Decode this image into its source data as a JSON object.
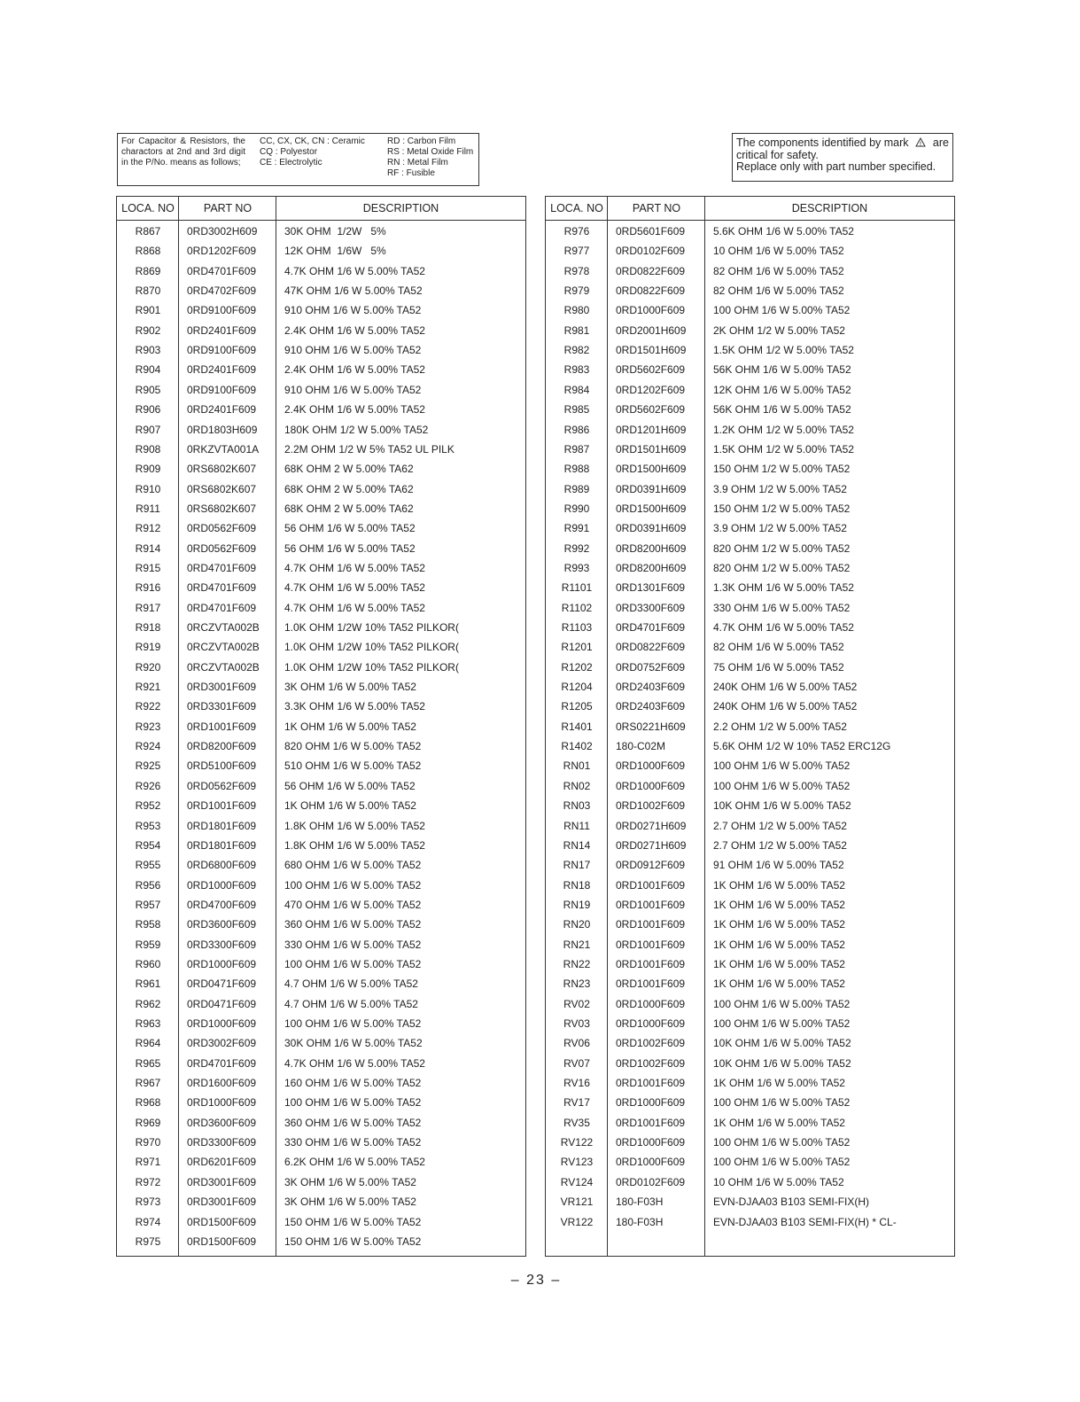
{
  "legend": {
    "intro": "For Capacitor & Resistors, the charactors at 2nd and 3rd digit in the P/No. means as follows;",
    "col2": [
      "CC, CX, CK, CN : Ceramic",
      "CQ : Polyestor",
      "CE : Electrolytic"
    ],
    "col3": [
      "RD : Carbon Film",
      "RS : Metal Oxide Film",
      "RN : Metal Film",
      "RF : Fusible"
    ]
  },
  "safety": {
    "before": "The components identified by mark",
    "after": "are",
    "line2": "critical for safety.",
    "line3": "Replace only with part number specified."
  },
  "left_table": {
    "headers": [
      "LOCA. NO",
      "PART NO",
      "DESCRIPTION"
    ],
    "rows": [
      [
        "R867",
        "0RD3002H609",
        "30K OHM  1/2W   5%"
      ],
      [
        "R868",
        "0RD1202F609",
        "12K OHM  1/6W   5%"
      ],
      [
        "R869",
        "0RD4701F609",
        "4.7K OHM 1/6 W 5.00% TA52"
      ],
      [
        "R870",
        "0RD4702F609",
        "47K OHM 1/6 W 5.00% TA52"
      ],
      [
        "R901",
        "0RD9100F609",
        "910 OHM 1/6 W 5.00% TA52"
      ],
      [
        "R902",
        "0RD2401F609",
        "2.4K OHM 1/6 W 5.00% TA52"
      ],
      [
        "R903",
        "0RD9100F609",
        "910 OHM 1/6 W 5.00% TA52"
      ],
      [
        "R904",
        "0RD2401F609",
        "2.4K OHM 1/6 W 5.00% TA52"
      ],
      [
        "R905",
        "0RD9100F609",
        "910 OHM 1/6 W 5.00% TA52"
      ],
      [
        "R906",
        "0RD2401F609",
        "2.4K OHM 1/6 W 5.00% TA52"
      ],
      [
        "R907",
        "0RD1803H609",
        "180K OHM 1/2 W 5.00% TA52"
      ],
      [
        "R908",
        "0RKZVTA001A",
        "2.2M OHM 1/2 W 5% TA52 UL PILK"
      ],
      [
        "R909",
        "0RS6802K607",
        "68K OHM 2 W 5.00% TA62"
      ],
      [
        "R910",
        "0RS6802K607",
        "68K OHM 2 W 5.00% TA62"
      ],
      [
        "R911",
        "0RS6802K607",
        "68K OHM 2 W 5.00% TA62"
      ],
      [
        "R912",
        "0RD0562F609",
        "56 OHM 1/6 W 5.00% TA52"
      ],
      [
        "R914",
        "0RD0562F609",
        "56 OHM 1/6 W 5.00% TA52"
      ],
      [
        "R915",
        "0RD4701F609",
        "4.7K OHM 1/6 W 5.00% TA52"
      ],
      [
        "R916",
        "0RD4701F609",
        "4.7K OHM 1/6 W 5.00% TA52"
      ],
      [
        "R917",
        "0RD4701F609",
        "4.7K OHM 1/6 W 5.00% TA52"
      ],
      [
        "R918",
        "0RCZVTA002B",
        "1.0K OHM 1/2W 10% TA52 PILKOR("
      ],
      [
        "R919",
        "0RCZVTA002B",
        "1.0K OHM 1/2W 10% TA52 PILKOR("
      ],
      [
        "R920",
        "0RCZVTA002B",
        "1.0K OHM 1/2W 10% TA52 PILKOR("
      ],
      [
        "R921",
        "0RD3001F609",
        "3K OHM 1/6 W 5.00% TA52"
      ],
      [
        "R922",
        "0RD3301F609",
        "3.3K OHM 1/6 W 5.00% TA52"
      ],
      [
        "R923",
        "0RD1001F609",
        "1K OHM 1/6 W 5.00% TA52"
      ],
      [
        "R924",
        "0RD8200F609",
        "820 OHM 1/6 W 5.00% TA52"
      ],
      [
        "R925",
        "0RD5100F609",
        "510 OHM 1/6 W 5.00% TA52"
      ],
      [
        "R926",
        "0RD0562F609",
        "56 OHM 1/6 W 5.00% TA52"
      ],
      [
        "R952",
        "0RD1001F609",
        "1K OHM 1/6 W 5.00% TA52"
      ],
      [
        "R953",
        "0RD1801F609",
        "1.8K OHM 1/6 W 5.00% TA52"
      ],
      [
        "R954",
        "0RD1801F609",
        "1.8K OHM 1/6 W 5.00% TA52"
      ],
      [
        "R955",
        "0RD6800F609",
        "680 OHM 1/6 W 5.00% TA52"
      ],
      [
        "R956",
        "0RD1000F609",
        "100 OHM 1/6 W 5.00% TA52"
      ],
      [
        "R957",
        "0RD4700F609",
        "470 OHM 1/6 W 5.00% TA52"
      ],
      [
        "R958",
        "0RD3600F609",
        "360 OHM 1/6 W 5.00% TA52"
      ],
      [
        "R959",
        "0RD3300F609",
        "330 OHM 1/6 W 5.00% TA52"
      ],
      [
        "R960",
        "0RD1000F609",
        "100 OHM 1/6 W 5.00% TA52"
      ],
      [
        "R961",
        "0RD0471F609",
        "4.7 OHM 1/6 W 5.00% TA52"
      ],
      [
        "R962",
        "0RD0471F609",
        "4.7 OHM 1/6 W 5.00% TA52"
      ],
      [
        "R963",
        "0RD1000F609",
        "100 OHM 1/6 W 5.00% TA52"
      ],
      [
        "R964",
        "0RD3002F609",
        "30K OHM 1/6 W 5.00% TA52"
      ],
      [
        "R965",
        "0RD4701F609",
        "4.7K OHM 1/6 W 5.00% TA52"
      ],
      [
        "R967",
        "0RD1600F609",
        "160 OHM 1/6 W 5.00% TA52"
      ],
      [
        "R968",
        "0RD1000F609",
        "100 OHM 1/6 W 5.00% TA52"
      ],
      [
        "R969",
        "0RD3600F609",
        "360 OHM 1/6 W 5.00% TA52"
      ],
      [
        "R970",
        "0RD3300F609",
        "330 OHM 1/6 W 5.00% TA52"
      ],
      [
        "R971",
        "0RD6201F609",
        "6.2K OHM 1/6 W 5.00% TA52"
      ],
      [
        "R972",
        "0RD3001F609",
        "3K OHM 1/6 W 5.00% TA52"
      ],
      [
        "R973",
        "0RD3001F609",
        "3K OHM 1/6 W 5.00% TA52"
      ],
      [
        "R974",
        "0RD1500F609",
        "150 OHM 1/6 W 5.00% TA52"
      ],
      [
        "R975",
        "0RD1500F609",
        "150 OHM 1/6 W 5.00% TA52"
      ]
    ]
  },
  "right_table": {
    "headers": [
      "LOCA. NO",
      "PART NO",
      "DESCRIPTION"
    ],
    "rows": [
      [
        "R976",
        "0RD5601F609",
        "5.6K OHM 1/6 W 5.00% TA52"
      ],
      [
        "R977",
        "0RD0102F609",
        "10 OHM 1/6 W 5.00% TA52"
      ],
      [
        "R978",
        "0RD0822F609",
        "82 OHM 1/6 W 5.00% TA52"
      ],
      [
        "R979",
        "0RD0822F609",
        "82 OHM 1/6 W 5.00% TA52"
      ],
      [
        "R980",
        "0RD1000F609",
        "100 OHM 1/6 W 5.00% TA52"
      ],
      [
        "R981",
        "0RD2001H609",
        "2K OHM 1/2 W 5.00% TA52"
      ],
      [
        "R982",
        "0RD1501H609",
        "1.5K OHM 1/2 W 5.00% TA52"
      ],
      [
        "R983",
        "0RD5602F609",
        "56K OHM 1/6 W 5.00% TA52"
      ],
      [
        "R984",
        "0RD1202F609",
        "12K OHM 1/6 W 5.00% TA52"
      ],
      [
        "R985",
        "0RD5602F609",
        "56K OHM 1/6 W 5.00% TA52"
      ],
      [
        "R986",
        "0RD1201H609",
        "1.2K OHM 1/2 W 5.00% TA52"
      ],
      [
        "R987",
        "0RD1501H609",
        "1.5K OHM 1/2 W 5.00% TA52"
      ],
      [
        "R988",
        "0RD1500H609",
        "150 OHM 1/2 W 5.00% TA52"
      ],
      [
        "R989",
        "0RD0391H609",
        "3.9 OHM 1/2 W 5.00% TA52"
      ],
      [
        "R990",
        "0RD1500H609",
        "150 OHM 1/2 W 5.00% TA52"
      ],
      [
        "R991",
        "0RD0391H609",
        "3.9 OHM 1/2 W 5.00% TA52"
      ],
      [
        "R992",
        "0RD8200H609",
        "820 OHM 1/2 W 5.00% TA52"
      ],
      [
        "R993",
        "0RD8200H609",
        "820 OHM 1/2 W 5.00% TA52"
      ],
      [
        "R1101",
        "0RD1301F609",
        "1.3K OHM 1/6 W 5.00% TA52"
      ],
      [
        "R1102",
        "0RD3300F609",
        "330 OHM 1/6 W 5.00% TA52"
      ],
      [
        "R1103",
        "0RD4701F609",
        "4.7K OHM 1/6 W 5.00% TA52"
      ],
      [
        "R1201",
        "0RD0822F609",
        "82 OHM 1/6 W 5.00% TA52"
      ],
      [
        "R1202",
        "0RD0752F609",
        "75 OHM 1/6 W 5.00% TA52"
      ],
      [
        "R1204",
        "0RD2403F609",
        "240K OHM 1/6 W 5.00% TA52"
      ],
      [
        "R1205",
        "0RD2403F609",
        "240K OHM 1/6 W 5.00% TA52"
      ],
      [
        "R1401",
        "0RS0221H609",
        "2.2 OHM 1/2 W 5.00% TA52"
      ],
      [
        "R1402",
        "180-C02M",
        "5.6K OHM 1/2 W 10% TA52 ERC12G"
      ],
      [
        "RN01",
        "0RD1000F609",
        "100 OHM 1/6 W 5.00% TA52"
      ],
      [
        "RN02",
        "0RD1000F609",
        "100 OHM 1/6 W 5.00% TA52"
      ],
      [
        "RN03",
        "0RD1002F609",
        "10K OHM 1/6 W 5.00% TA52"
      ],
      [
        "RN11",
        "0RD0271H609",
        "2.7 OHM 1/2 W 5.00% TA52"
      ],
      [
        "RN14",
        "0RD0271H609",
        "2.7 OHM 1/2 W 5.00% TA52"
      ],
      [
        "RN17",
        "0RD0912F609",
        "91 OHM 1/6 W 5.00% TA52"
      ],
      [
        "RN18",
        "0RD1001F609",
        "1K OHM 1/6 W 5.00% TA52"
      ],
      [
        "RN19",
        "0RD1001F609",
        "1K OHM 1/6 W 5.00% TA52"
      ],
      [
        "RN20",
        "0RD1001F609",
        "1K OHM 1/6 W 5.00% TA52"
      ],
      [
        "RN21",
        "0RD1001F609",
        "1K OHM 1/6 W 5.00% TA52"
      ],
      [
        "RN22",
        "0RD1001F609",
        "1K OHM 1/6 W 5.00% TA52"
      ],
      [
        "RN23",
        "0RD1001F609",
        "1K OHM 1/6 W 5.00% TA52"
      ],
      [
        "RV02",
        "0RD1000F609",
        "100 OHM 1/6 W 5.00% TA52"
      ],
      [
        "RV03",
        "0RD1000F609",
        "100 OHM 1/6 W 5.00% TA52"
      ],
      [
        "RV06",
        "0RD1002F609",
        "10K OHM 1/6 W 5.00% TA52"
      ],
      [
        "RV07",
        "0RD1002F609",
        "10K OHM 1/6 W 5.00% TA52"
      ],
      [
        "RV16",
        "0RD1001F609",
        "1K OHM 1/6 W 5.00% TA52"
      ],
      [
        "RV17",
        "0RD1000F609",
        "100 OHM 1/6 W 5.00% TA52"
      ],
      [
        "RV35",
        "0RD1001F609",
        "1K OHM 1/6 W 5.00% TA52"
      ],
      [
        "RV122",
        "0RD1000F609",
        "100 OHM 1/6 W 5.00% TA52"
      ],
      [
        "RV123",
        "0RD1000F609",
        "100 OHM 1/6 W 5.00% TA52"
      ],
      [
        "RV124",
        "0RD0102F609",
        "10 OHM 1/6 W 5.00% TA52"
      ],
      [
        "VR121",
        "180-F03H",
        "EVN-DJAA03 B103 SEMI-FIX(H)"
      ],
      [
        "VR122",
        "180-F03H",
        "EVN-DJAA03 B103 SEMI-FIX(H) * CL-"
      ]
    ]
  },
  "page_number": "– 23 –"
}
